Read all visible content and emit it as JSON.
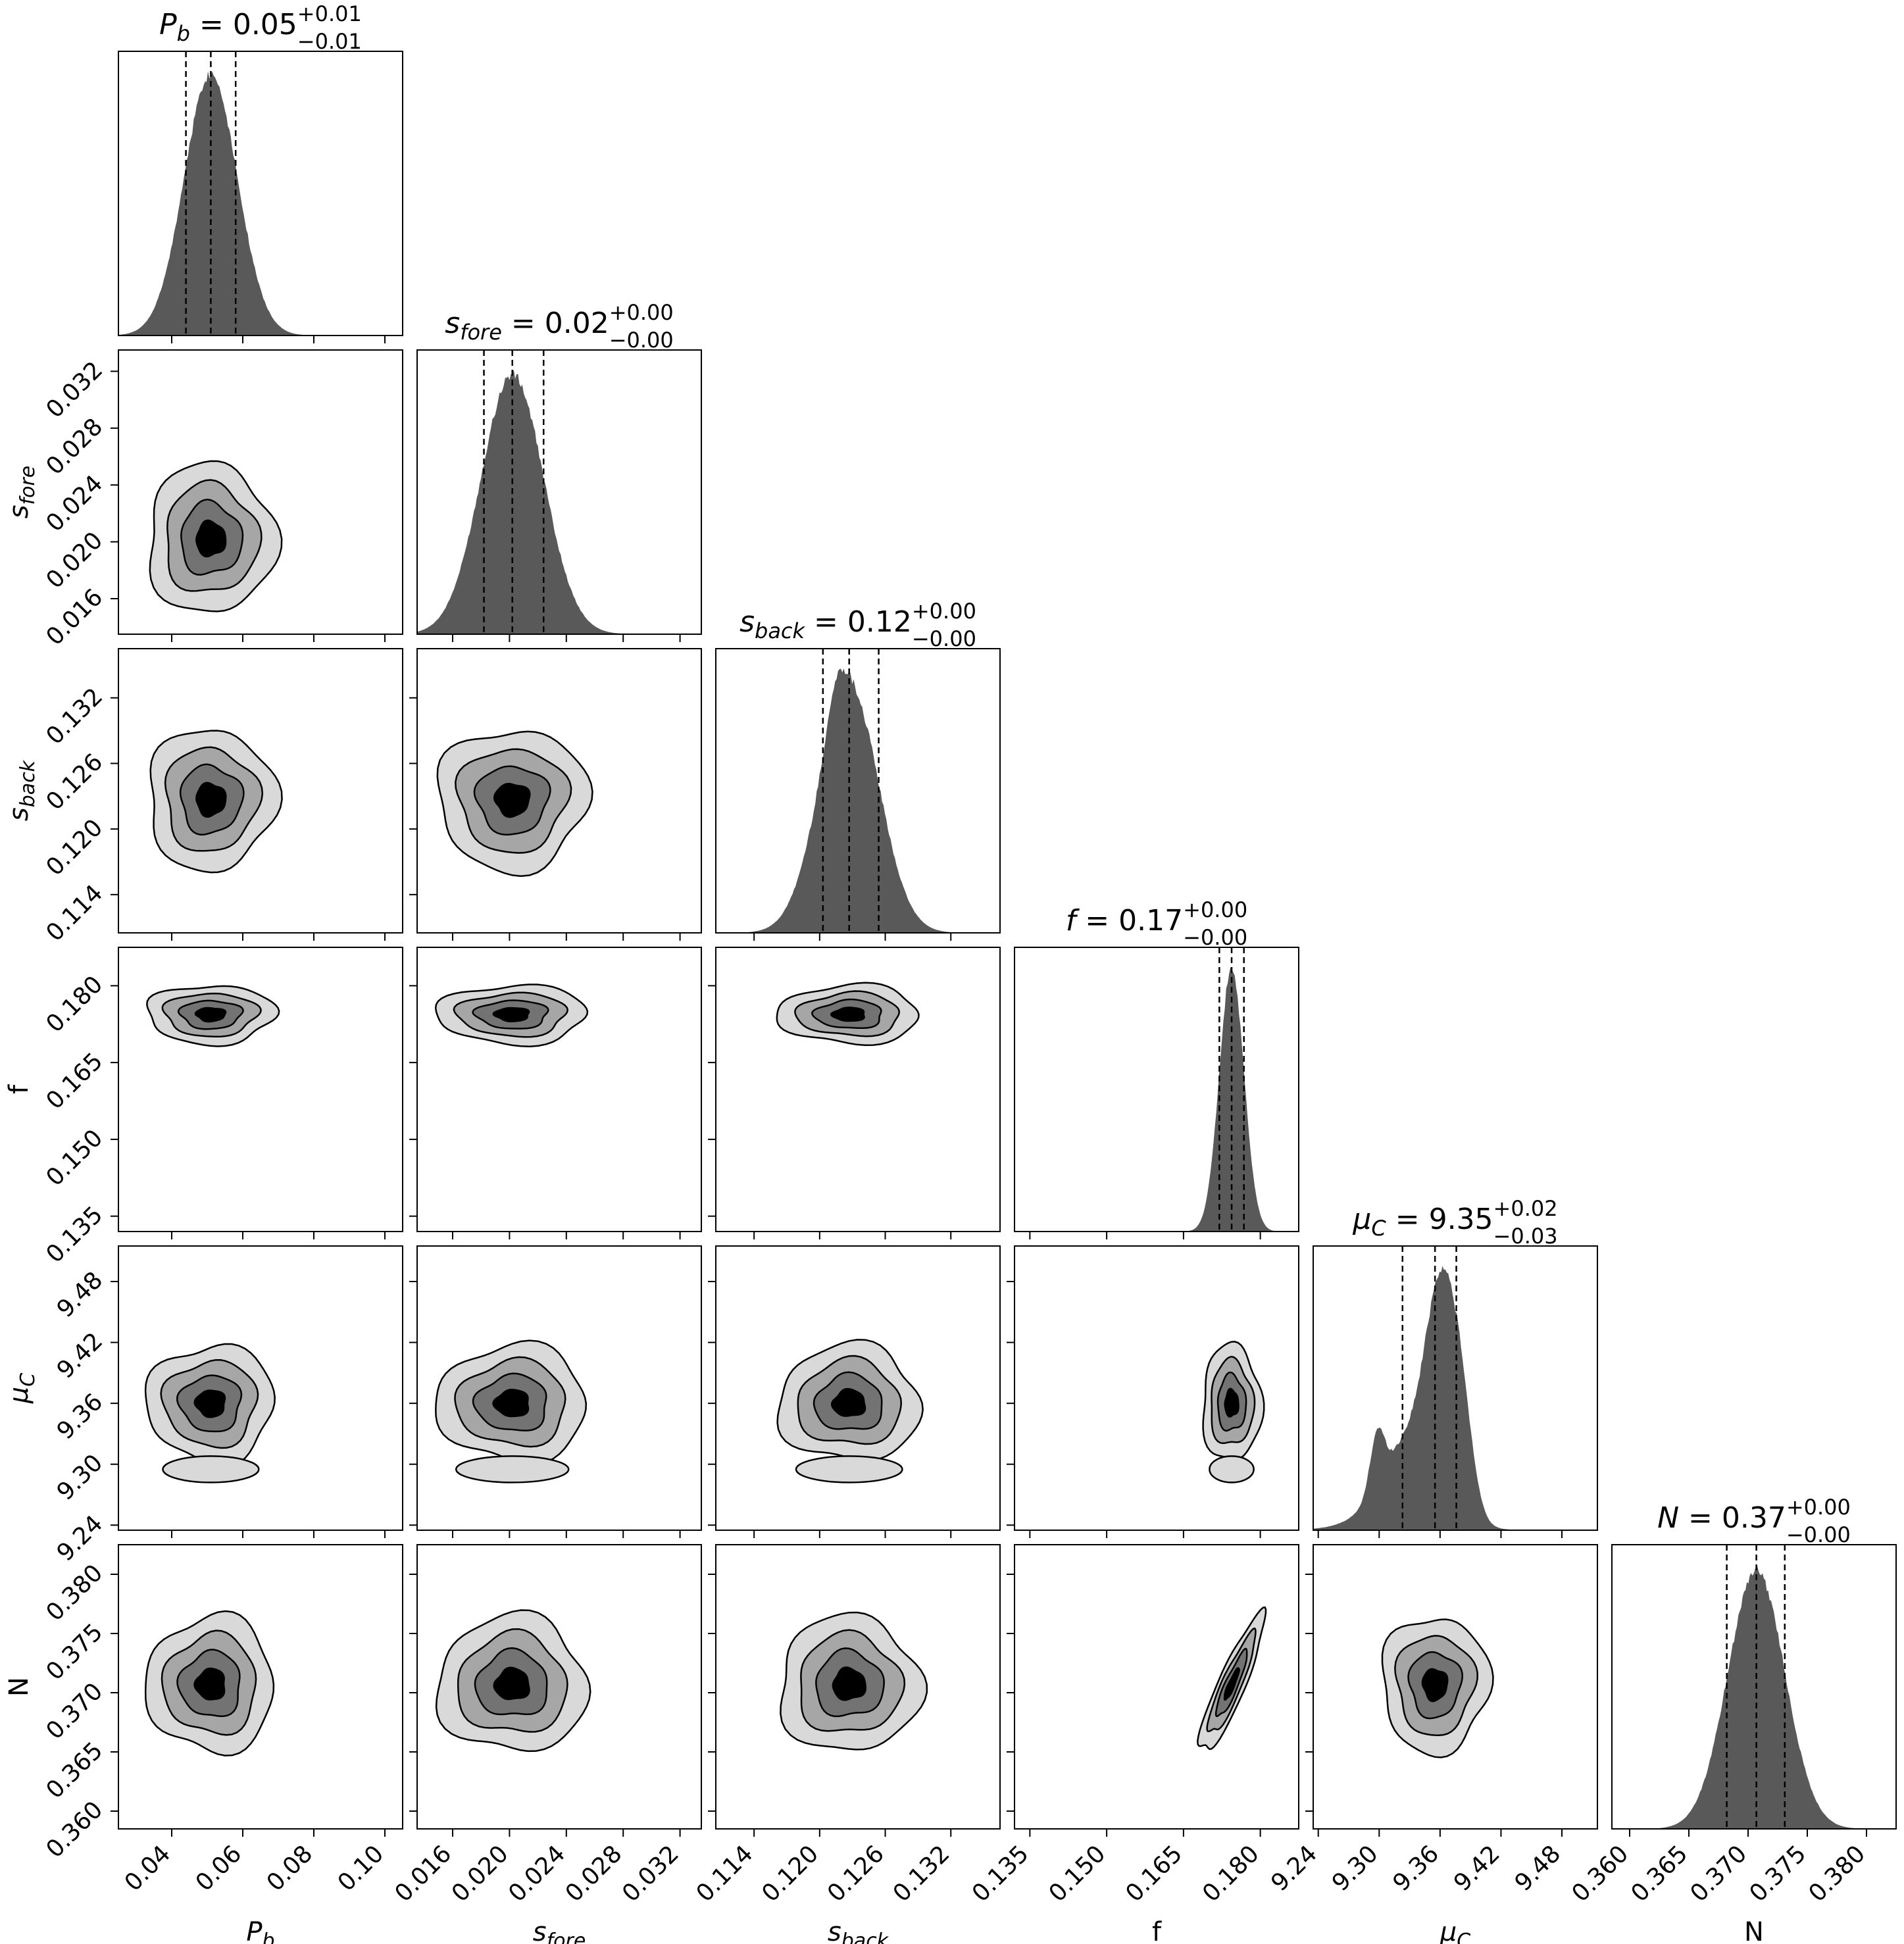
{
  "chart_data": {
    "type": "corner",
    "colors": {
      "fill_hist": "#595959",
      "contour_levels": [
        "#d9d9d9",
        "#a6a6a6",
        "#737373",
        "#000000"
      ],
      "stroke": "#000000",
      "background": "#ffffff"
    },
    "parameters": [
      {
        "key": "Pb",
        "label_main": "P",
        "label_sub": "b",
        "title": {
          "main": "P",
          "sub": "b",
          "value": " = 0.05",
          "plus": "+0.01",
          "minus": "−0.01"
        },
        "range": [
          0.025,
          0.105
        ],
        "ticks": [
          0.04,
          0.06,
          0.08,
          0.1
        ],
        "tick_labels": [
          "0.04",
          "0.06",
          "0.08",
          "0.10"
        ],
        "median": 0.051,
        "q16": 0.044,
        "q84": 0.058,
        "sigma": 0.0075
      },
      {
        "key": "sfore",
        "label_main": "s",
        "label_sub": "fore",
        "title": {
          "main": "s",
          "sub": "fore",
          "value": " = 0.02",
          "plus": "+0.00",
          "minus": "−0.00"
        },
        "range": [
          0.0135,
          0.0335
        ],
        "ticks": [
          0.016,
          0.02,
          0.024,
          0.028,
          0.032
        ],
        "tick_labels": [
          "0.016",
          "0.020",
          "0.024",
          "0.028",
          "0.032"
        ],
        "median": 0.0202,
        "q16": 0.0182,
        "q84": 0.0224,
        "sigma": 0.0022
      },
      {
        "key": "sback",
        "label_main": "s",
        "label_sub": "back",
        "title": {
          "main": "s",
          "sub": "back",
          "value": " = 0.12",
          "plus": "+0.00",
          "minus": "−0.00"
        },
        "range": [
          0.1105,
          0.1365
        ],
        "ticks": [
          0.114,
          0.12,
          0.126,
          0.132
        ],
        "tick_labels": [
          "0.114",
          "0.120",
          "0.126",
          "0.132"
        ],
        "median": 0.1227,
        "q16": 0.1203,
        "q84": 0.1254,
        "sigma": 0.0027
      },
      {
        "key": "f",
        "label_main": "f",
        "label_sub": "",
        "title": {
          "main": "f",
          "sub": "",
          "value": " = 0.17",
          "plus": "+0.00",
          "minus": "−0.00"
        },
        "range": [
          0.132,
          0.1875
        ],
        "ticks": [
          0.135,
          0.15,
          0.165,
          0.18
        ],
        "tick_labels": [
          "0.135",
          "0.150",
          "0.165",
          "0.180"
        ],
        "median": 0.1744,
        "q16": 0.172,
        "q84": 0.1768,
        "sigma": 0.0024
      },
      {
        "key": "muC",
        "label_main": "μ",
        "label_sub": "C",
        "title": {
          "main": "μ",
          "sub": "C",
          "value": " = 9.35",
          "plus": "+0.02",
          "minus": "−0.03"
        },
        "range": [
          9.235,
          9.515
        ],
        "ticks": [
          9.24,
          9.3,
          9.36,
          9.42,
          9.48
        ],
        "tick_labels": [
          "9.24",
          "9.30",
          "9.36",
          "9.42",
          "9.48"
        ],
        "median": 9.355,
        "q16": 9.323,
        "q84": 9.376,
        "sigma": 0.022
      },
      {
        "key": "N",
        "label_main": "N",
        "label_sub": "",
        "title": {
          "main": "N",
          "sub": "",
          "value": " = 0.37",
          "plus": "+0.00",
          "minus": "−0.00"
        },
        "range": [
          0.3585,
          0.3825
        ],
        "ticks": [
          0.36,
          0.365,
          0.37,
          0.375,
          0.38
        ],
        "tick_labels": [
          "0.360",
          "0.365",
          "0.370",
          "0.375",
          "0.380"
        ],
        "median": 0.3707,
        "q16": 0.3682,
        "q84": 0.3731,
        "sigma": 0.0024
      }
    ]
  }
}
